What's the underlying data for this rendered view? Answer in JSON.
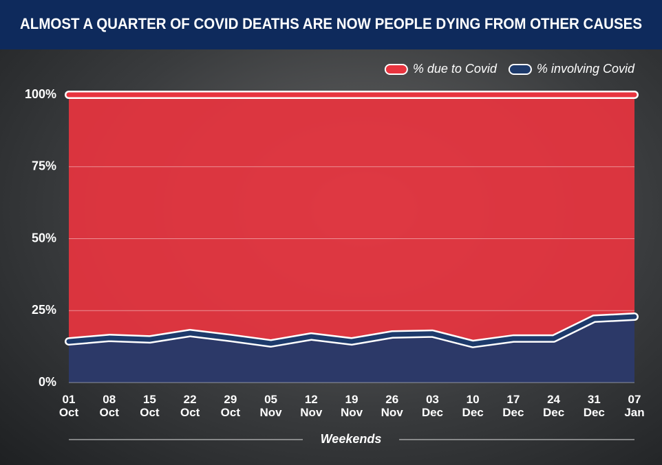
{
  "chart_data": {
    "type": "area",
    "title": "ALMOST A QUARTER OF COVID DEATHS ARE NOW PEOPLE DYING FROM OTHER CAUSES",
    "x_label": "Weekends",
    "categories": [
      "01 Oct",
      "08 Oct",
      "15 Oct",
      "22 Oct",
      "29 Oct",
      "05 Nov",
      "12 Nov",
      "19 Nov",
      "26 Nov",
      "03 Dec",
      "10 Dec",
      "17 Dec",
      "24 Dec",
      "31 Dec",
      "07 Jan"
    ],
    "series": [
      {
        "name": "% due to Covid",
        "color": "#e8343f",
        "values": [
          100,
          100,
          100,
          100,
          100,
          100,
          100,
          100,
          100,
          100,
          100,
          100,
          100,
          100,
          100
        ]
      },
      {
        "name": "% involving Covid",
        "color": "#1d3a6b",
        "values": [
          14.3,
          15.5,
          15,
          17.2,
          15.5,
          13.6,
          16,
          14.3,
          16.7,
          17,
          13.4,
          15.3,
          15.3,
          22.2,
          22.9
        ]
      }
    ],
    "ylim": [
      0,
      100
    ],
    "yticks": [
      {
        "value": 0,
        "label": "0%"
      },
      {
        "value": 25,
        "label": "25%"
      },
      {
        "value": 50,
        "label": "50%"
      },
      {
        "value": 75,
        "label": "75%"
      },
      {
        "value": 100,
        "label": "100%"
      }
    ],
    "grid": true,
    "legend": "top-right"
  }
}
